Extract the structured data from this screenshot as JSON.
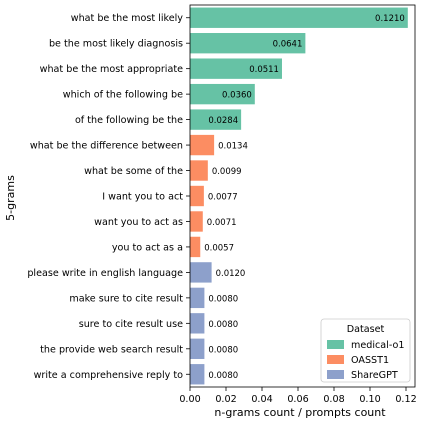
{
  "chart_data": {
    "type": "bar",
    "orientation": "horizontal",
    "ylabel": "5-grams",
    "xlabel": "n-grams count / prompts count",
    "xlim": [
      0,
      0.125
    ],
    "xticks": [
      "0.00",
      "0.02",
      "0.04",
      "0.06",
      "0.08",
      "0.10",
      "0.12"
    ],
    "legend": {
      "title": "Dataset",
      "placement": "bottom-right",
      "entries": [
        "medical-o1",
        "OASST1",
        "ShareGPT"
      ]
    },
    "colors": {
      "medical-o1": "#66c2a5",
      "OASST1": "#fc8d62",
      "ShareGPT": "#8da0cb"
    },
    "bars": [
      {
        "label": "what be the most likely",
        "value": 0.121,
        "value_label": "0.1210",
        "dataset": "medical-o1"
      },
      {
        "label": "be the most likely diagnosis",
        "value": 0.0641,
        "value_label": "0.0641",
        "dataset": "medical-o1"
      },
      {
        "label": "what be the most appropriate",
        "value": 0.0511,
        "value_label": "0.0511",
        "dataset": "medical-o1"
      },
      {
        "label": "which of the following be",
        "value": 0.036,
        "value_label": "0.0360",
        "dataset": "medical-o1"
      },
      {
        "label": "of the following be the",
        "value": 0.0284,
        "value_label": "0.0284",
        "dataset": "medical-o1"
      },
      {
        "label": "what be the difference between",
        "value": 0.0134,
        "value_label": "0.0134",
        "dataset": "OASST1"
      },
      {
        "label": "what be some of the",
        "value": 0.0099,
        "value_label": "0.0099",
        "dataset": "OASST1"
      },
      {
        "label": "I want you to act",
        "value": 0.0077,
        "value_label": "0.0077",
        "dataset": "OASST1"
      },
      {
        "label": "want you to act as",
        "value": 0.0071,
        "value_label": "0.0071",
        "dataset": "OASST1"
      },
      {
        "label": "you to act as a",
        "value": 0.0057,
        "value_label": "0.0057",
        "dataset": "OASST1"
      },
      {
        "label": "please write in english language",
        "value": 0.012,
        "value_label": "0.0120",
        "dataset": "ShareGPT"
      },
      {
        "label": "make sure to cite result",
        "value": 0.008,
        "value_label": "0.0080",
        "dataset": "ShareGPT"
      },
      {
        "label": "sure to cite result use",
        "value": 0.008,
        "value_label": "0.0080",
        "dataset": "ShareGPT"
      },
      {
        "label": "the provide web search result",
        "value": 0.008,
        "value_label": "0.0080",
        "dataset": "ShareGPT"
      },
      {
        "label": "write a comprehensive reply to",
        "value": 0.008,
        "value_label": "0.0080",
        "dataset": "ShareGPT"
      }
    ]
  }
}
